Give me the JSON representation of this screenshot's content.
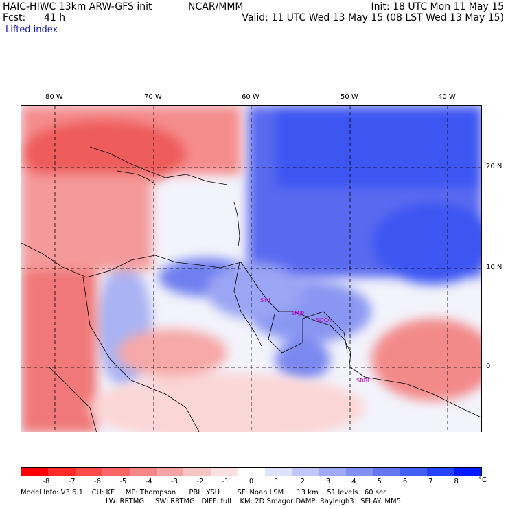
{
  "header": {
    "model_title": "HAIC-HIWC 13km ARW-GFS init",
    "org": "NCAR/MMM",
    "init": "Init: 18 UTC Mon 11 May 15",
    "fcst_label": "Fcst:",
    "fcst_value": "41 h",
    "valid": "Valid: 11 UTC Wed 13 May 15 (08 LST Wed 13 May 15)",
    "field": "Lifted index"
  },
  "map": {
    "lon_labels": [
      "80 W",
      "70 W",
      "60 W",
      "50 W",
      "40 W"
    ],
    "lat_labels": [
      "20 N",
      "10 N",
      "0"
    ],
    "sites": [
      "SYIJ",
      "SMJP",
      "SOCA",
      "SBBE"
    ],
    "colors": {
      "negative": "#e8323c",
      "positive": "#2a3ee8",
      "neutral": "#ffffff",
      "boundary": "#000000",
      "site": "#c000c0"
    }
  },
  "colorbar": {
    "labels": [
      "-8",
      "-7",
      "-6",
      "-5",
      "-4",
      "-3",
      "-2",
      "-1",
      "0",
      "1",
      "2",
      "3",
      "4",
      "5",
      "6",
      "7",
      "8"
    ],
    "unit": "°C",
    "colors": [
      "#ff0000",
      "#fe2a2a",
      "#fb4a4a",
      "#f96767",
      "#f68585",
      "#f4a4a4",
      "#f6c4c4",
      "#fae0e0",
      "#ffffff",
      "#dfe2fc",
      "#c0c6f8",
      "#a0a9f5",
      "#8290f2",
      "#6377f0",
      "#435ef2",
      "#2443f5",
      "#0018ff"
    ]
  },
  "info": {
    "line1": "Model Info: V3.6.1    CU: KF     MP: Thompson      PBL: YSU        SF: Noah LSM      13 km    51 levels   60 sec",
    "line2": "LW: RRTMG     SW: RRTMG   DIFF: full    KM: 2D Smagor DAMP: Rayleigh3   SFLAY: MM5"
  }
}
